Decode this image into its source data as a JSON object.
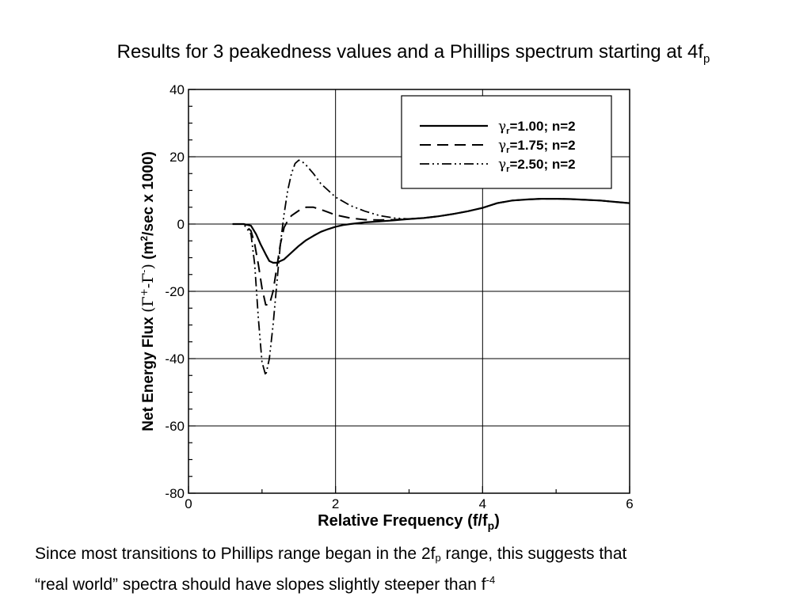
{
  "slide": {
    "title_main": "Results for 3 peakedness values and a Phillips spectrum starting at 4f",
    "title_sub": "p",
    "note_line1_a": "Since most transitions to Phillips range began in the 2f",
    "note_line1_sub": "p",
    "note_line1_b": " range, this suggests that",
    "note_line2_a": "“real world” spectra should have slopes slightly steeper than f",
    "note_line2_sup": "-4"
  },
  "chart_data": {
    "type": "line",
    "xlabel_main": "Relative Frequency (f/f",
    "xlabel_sub": "p",
    "xlabel_end": ")",
    "ylabel_main": "Net Energy Flux",
    "ylabel_greek": "(Γ",
    "ylabel_greek_sup1": "+",
    "ylabel_greek_mid": "-Γ",
    "ylabel_greek_sup2": "-",
    "ylabel_greek_end": ")",
    "ylabel_units_a": "(m",
    "ylabel_units_sup": "2",
    "ylabel_units_b": "/sec  x 1000)",
    "xlim": [
      0,
      6
    ],
    "ylim": [
      -80,
      40
    ],
    "x_ticks": [
      "0",
      "2",
      "4",
      "6"
    ],
    "y_ticks": [
      "40",
      "20",
      "0",
      "-20",
      "-40",
      "-60",
      "-80"
    ],
    "grid": true,
    "legend_position": "top-right",
    "series": [
      {
        "name_greek": "γ",
        "name_sub": "r",
        "name": "=1.00;  n=2",
        "style": "solid",
        "x": [
          0.6,
          0.75,
          0.85,
          0.92,
          0.98,
          1.05,
          1.1,
          1.15,
          1.2,
          1.3,
          1.4,
          1.5,
          1.6,
          1.7,
          1.8,
          1.9,
          2.0,
          2.1,
          2.2,
          2.4,
          2.6,
          2.8,
          3.0,
          3.2,
          3.4,
          3.6,
          3.8,
          4.0,
          4.2,
          4.4,
          4.6,
          4.8,
          5.0,
          5.2,
          5.4,
          5.6,
          5.8,
          6.0
        ],
        "y": [
          0,
          0,
          -0.5,
          -3,
          -6,
          -9,
          -11,
          -11.5,
          -11.5,
          -10.5,
          -8.5,
          -6.5,
          -4.8,
          -3.5,
          -2.3,
          -1.5,
          -0.8,
          -0.3,
          0,
          0.5,
          0.8,
          1.1,
          1.5,
          1.8,
          2.3,
          3.0,
          3.8,
          4.8,
          6.2,
          7.0,
          7.3,
          7.5,
          7.5,
          7.4,
          7.2,
          7.0,
          6.6,
          6.2
        ]
      },
      {
        "name_greek": "γ",
        "name_sub": "r",
        "name": "=1.75;  n=2",
        "style": "dashed",
        "x": [
          0.6,
          0.75,
          0.85,
          0.9,
          0.95,
          1.0,
          1.05,
          1.1,
          1.15,
          1.2,
          1.25,
          1.3,
          1.35,
          1.4,
          1.5,
          1.6,
          1.7,
          1.8,
          1.9,
          2.0,
          2.2,
          2.4,
          2.6,
          2.8,
          3.0,
          3.2,
          3.4,
          3.6,
          3.8,
          4.0,
          4.2,
          4.4,
          4.6,
          4.8,
          5.0,
          5.2,
          5.4,
          5.6,
          5.8,
          6.0
        ],
        "y": [
          0,
          0,
          -2,
          -6,
          -12,
          -19,
          -24,
          -24,
          -20,
          -13,
          -6,
          -1,
          1,
          2.5,
          4.0,
          5.0,
          5.0,
          4.3,
          3.5,
          2.7,
          1.8,
          1.3,
          1.2,
          1.3,
          1.5,
          1.8,
          2.3,
          3.0,
          3.8,
          4.8,
          6.2,
          7.0,
          7.3,
          7.5,
          7.5,
          7.4,
          7.2,
          7.0,
          6.6,
          6.2
        ]
      },
      {
        "name_greek": "γ",
        "name_sub": "r",
        "name": "=2.50;  n=2",
        "style": "dashdotdot",
        "x": [
          0.6,
          0.75,
          0.85,
          0.9,
          0.95,
          1.0,
          1.05,
          1.1,
          1.15,
          1.2,
          1.25,
          1.3,
          1.35,
          1.4,
          1.45,
          1.5,
          1.55,
          1.6,
          1.7,
          1.8,
          1.9,
          2.0,
          2.2,
          2.4,
          2.6,
          2.8,
          3.0,
          3.2,
          3.4,
          3.6,
          3.8,
          4.0,
          4.2,
          4.4,
          4.6,
          4.8,
          5.0,
          5.2,
          5.4,
          5.6,
          5.8,
          6.0
        ],
        "y": [
          0,
          0,
          -3,
          -12,
          -28,
          -41,
          -45,
          -40,
          -30,
          -18,
          -6,
          3,
          10,
          15,
          18,
          19,
          18.5,
          17.5,
          15,
          12,
          10,
          8,
          5.5,
          3.8,
          2.5,
          1.8,
          1.5,
          1.8,
          2.3,
          3.0,
          3.8,
          4.8,
          6.2,
          7.0,
          7.3,
          7.5,
          7.5,
          7.4,
          7.2,
          7.0,
          6.6,
          6.2
        ]
      }
    ]
  }
}
